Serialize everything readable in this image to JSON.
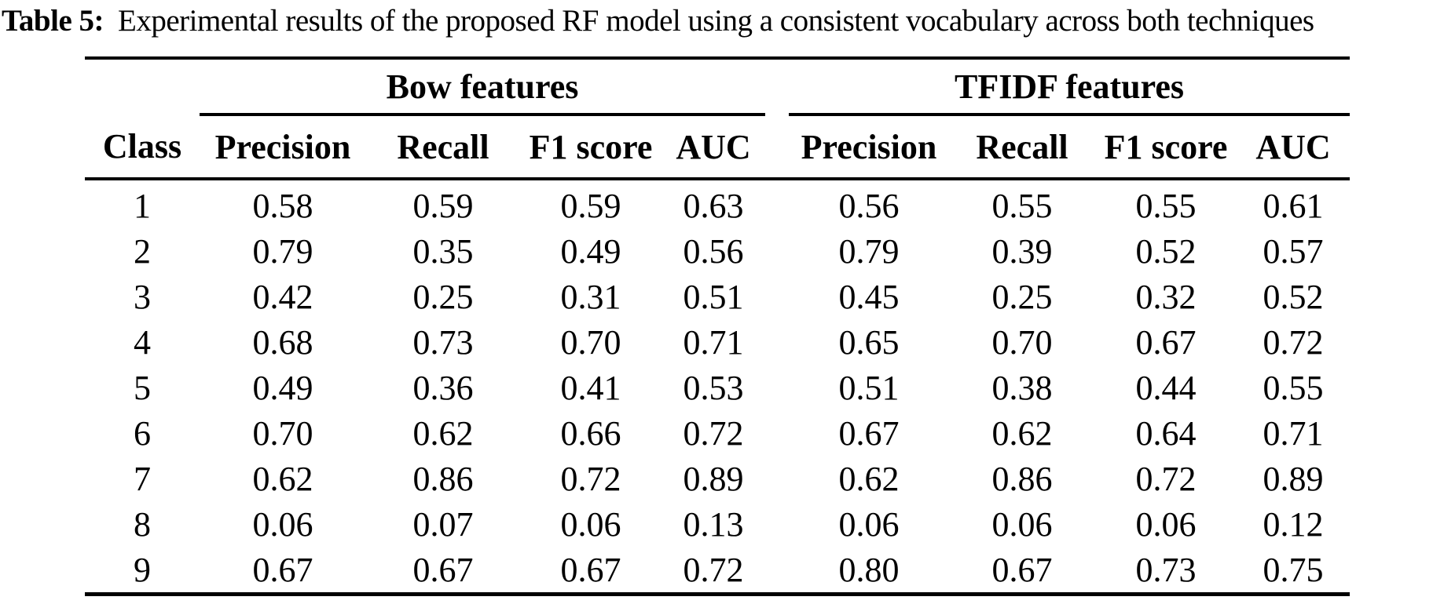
{
  "caption": {
    "label": "Table 5:",
    "text": "Experimental results of the proposed RF model using a consistent vocabulary across both techniques"
  },
  "table": {
    "class_header": "Class",
    "groups": [
      {
        "label": "Bow features"
      },
      {
        "label": "TFIDF features"
      }
    ],
    "metric_headers": [
      "Precision",
      "Recall",
      "F1 score",
      "AUC"
    ],
    "rows": [
      {
        "class": "1",
        "bow": [
          "0.58",
          "0.59",
          "0.59",
          "0.63"
        ],
        "tfidf": [
          "0.56",
          "0.55",
          "0.55",
          "0.61"
        ]
      },
      {
        "class": "2",
        "bow": [
          "0.79",
          "0.35",
          "0.49",
          "0.56"
        ],
        "tfidf": [
          "0.79",
          "0.39",
          "0.52",
          "0.57"
        ]
      },
      {
        "class": "3",
        "bow": [
          "0.42",
          "0.25",
          "0.31",
          "0.51"
        ],
        "tfidf": [
          "0.45",
          "0.25",
          "0.32",
          "0.52"
        ]
      },
      {
        "class": "4",
        "bow": [
          "0.68",
          "0.73",
          "0.70",
          "0.71"
        ],
        "tfidf": [
          "0.65",
          "0.70",
          "0.67",
          "0.72"
        ]
      },
      {
        "class": "5",
        "bow": [
          "0.49",
          "0.36",
          "0.41",
          "0.53"
        ],
        "tfidf": [
          "0.51",
          "0.38",
          "0.44",
          "0.55"
        ]
      },
      {
        "class": "6",
        "bow": [
          "0.70",
          "0.62",
          "0.66",
          "0.72"
        ],
        "tfidf": [
          "0.67",
          "0.62",
          "0.64",
          "0.71"
        ]
      },
      {
        "class": "7",
        "bow": [
          "0.62",
          "0.86",
          "0.72",
          "0.89"
        ],
        "tfidf": [
          "0.62",
          "0.86",
          "0.72",
          "0.89"
        ]
      },
      {
        "class": "8",
        "bow": [
          "0.06",
          "0.07",
          "0.06",
          "0.13"
        ],
        "tfidf": [
          "0.06",
          "0.06",
          "0.06",
          "0.12"
        ]
      },
      {
        "class": "9",
        "bow": [
          "0.67",
          "0.67",
          "0.67",
          "0.72"
        ],
        "tfidf": [
          "0.80",
          "0.67",
          "0.73",
          "0.75"
        ]
      }
    ]
  },
  "colors": {
    "text": "#000000",
    "background": "#ffffff",
    "rule": "#000000"
  }
}
